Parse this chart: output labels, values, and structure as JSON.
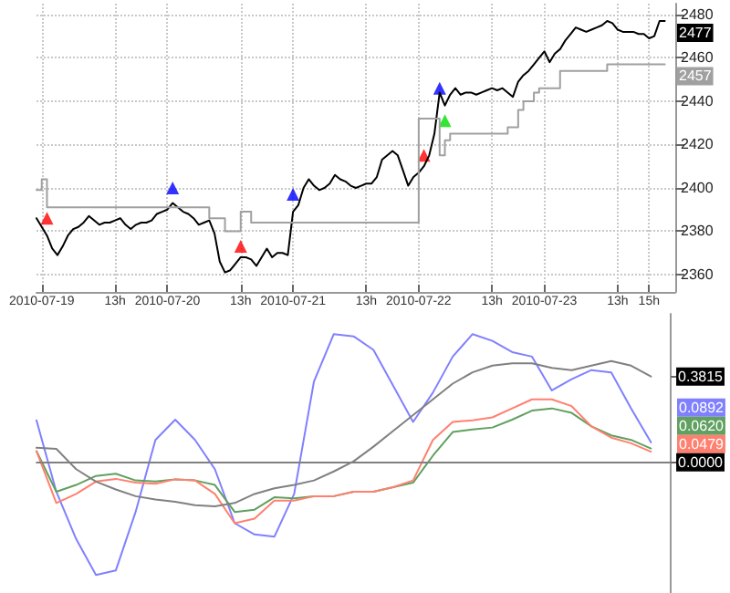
{
  "chart_data": [
    {
      "type": "line",
      "categories": [
        null,
        "2010-07-19",
        null,
        null,
        null,
        null,
        null,
        null,
        null,
        null,
        null,
        null,
        null,
        null,
        null,
        "13h",
        null,
        null,
        null,
        null,
        null,
        null,
        null,
        null,
        null,
        "2010-07-20",
        null,
        null,
        null,
        null,
        null,
        null,
        null,
        null,
        null,
        null,
        null,
        null,
        null,
        "13h",
        null,
        null,
        null,
        null,
        null,
        null,
        null,
        null,
        null,
        "2010-07-21",
        null,
        null,
        null,
        null,
        null,
        null,
        null,
        null,
        null,
        null,
        null,
        null,
        null,
        "13h",
        null,
        null,
        null,
        null,
        null,
        null,
        null,
        null,
        null,
        "2010-07-22",
        null,
        null,
        null,
        null,
        null,
        null,
        null,
        null,
        null,
        null,
        null,
        null,
        null,
        "13h",
        null,
        null,
        null,
        null,
        null,
        null,
        null,
        null,
        null,
        "2010-07-23",
        null,
        null,
        null,
        null,
        null,
        null,
        null,
        null,
        null,
        null,
        null,
        null,
        null,
        "13h",
        null,
        null,
        null,
        null,
        null,
        "15h",
        null,
        null,
        null,
        null,
        null
      ],
      "series": [
        {
          "color": "#000000",
          "values": [
            2386,
            2382,
            2378,
            2372,
            2369,
            2373,
            2378,
            2381,
            2382,
            2384,
            2387,
            2385,
            2383,
            2384,
            2384,
            2385,
            2386,
            2383,
            2381,
            2383,
            2384,
            2384,
            2385,
            2388,
            2389,
            2390,
            2393,
            2391,
            2389,
            2388,
            2386,
            2383,
            2384,
            2385,
            2379,
            2366,
            2361,
            2362,
            2365,
            2368,
            2368,
            2367,
            2364,
            2368,
            2372,
            2368,
            2370,
            2370,
            2369,
            2389,
            2392,
            2400,
            2404,
            2401,
            2399,
            2400,
            2402,
            2406,
            2404,
            2403,
            2401,
            2400,
            2401,
            2402,
            2402,
            2405,
            2413,
            2415,
            2417,
            2415,
            2408,
            2401,
            2405,
            2407,
            2410,
            2415,
            2425,
            2444,
            2438,
            2443,
            2446,
            2443,
            2444,
            2444,
            2443,
            2444,
            2445,
            2446,
            2445,
            2446,
            2444,
            2442,
            2449,
            2452,
            2454,
            2457,
            2460,
            2463,
            2458,
            2462,
            2464,
            2468,
            2471,
            2474,
            2473,
            2472,
            2473,
            2474,
            2475,
            2477,
            2476,
            2473,
            2472,
            2472,
            2472,
            2471,
            2471,
            2469,
            2470,
            2477,
            2477,
            null,
            null
          ]
        },
        {
          "type": "step",
          "color": "#a0a0a0",
          "values": [
            2399,
            2399,
            2404,
            2391,
            2391,
            2391,
            2391,
            2391,
            2391,
            2391,
            2391,
            2391,
            2391,
            2391,
            2391,
            2391,
            2391,
            2391,
            2391,
            2391,
            2391,
            2391,
            2391,
            2391,
            2391,
            2391,
            2391,
            2391,
            2391,
            2391,
            2391,
            2391,
            2391,
            2391,
            2386,
            2386,
            2386,
            2380,
            2380,
            2380,
            2389,
            2389,
            2384,
            2384,
            2384,
            2384,
            2384,
            2384,
            2384,
            2384,
            2384,
            2384,
            2384,
            2384,
            2384,
            2384,
            2384,
            2384,
            2384,
            2384,
            2384,
            2384,
            2384,
            2384,
            2384,
            2384,
            2384,
            2384,
            2384,
            2384,
            2384,
            2384,
            2384,
            2384,
            2432,
            2432,
            2432,
            2432,
            2415,
            2422,
            2425,
            2425,
            2425,
            2425,
            2425,
            2425,
            2425,
            2425,
            2425,
            2425,
            2425,
            2428,
            2428,
            2436,
            2440,
            2440,
            2444,
            2446,
            2446,
            2446,
            2446,
            2454,
            2454,
            2454,
            2454,
            2454,
            2454,
            2454,
            2454,
            2454,
            2457,
            2457,
            2457,
            2457,
            2457,
            2457,
            2457,
            2457,
            2457,
            2457,
            2457,
            null,
            null
          ]
        },
        {
          "type": "scatter",
          "marker": "triangle",
          "color": "#ff0000",
          "values": [
            null,
            null,
            2386,
            null,
            null,
            null,
            null,
            null,
            null,
            null,
            null,
            null,
            null,
            null,
            null,
            null,
            null,
            null,
            null,
            null,
            null,
            null,
            null,
            null,
            null,
            null,
            null,
            null,
            null,
            null,
            null,
            null,
            null,
            null,
            null,
            null,
            null,
            null,
            null,
            2373,
            null,
            null,
            null,
            null,
            null,
            null,
            null,
            null,
            null,
            null,
            null,
            null,
            null,
            null,
            null,
            null,
            null,
            null,
            null,
            null,
            null,
            null,
            null,
            null,
            null,
            null,
            null,
            null,
            null,
            null,
            null,
            null,
            null,
            null,
            2415,
            null,
            null,
            null,
            null,
            null,
            null,
            null,
            null,
            null,
            null,
            null,
            null,
            null,
            null,
            null,
            null,
            null,
            null,
            null,
            null,
            null,
            null,
            null,
            null,
            null,
            null,
            null,
            null,
            null,
            null,
            null,
            null,
            null,
            null,
            null,
            null,
            null,
            null,
            null,
            null,
            null,
            null,
            null,
            null,
            null,
            null,
            null,
            null
          ]
        },
        {
          "type": "scatter",
          "marker": "triangle",
          "color": "#0000ff",
          "values": [
            null,
            null,
            null,
            null,
            null,
            null,
            null,
            null,
            null,
            null,
            null,
            null,
            null,
            null,
            null,
            null,
            null,
            null,
            null,
            null,
            null,
            null,
            null,
            null,
            null,
            null,
            2400,
            null,
            null,
            null,
            null,
            null,
            null,
            null,
            null,
            null,
            null,
            null,
            null,
            null,
            null,
            null,
            null,
            null,
            null,
            null,
            null,
            null,
            null,
            2397,
            null,
            null,
            null,
            null,
            null,
            null,
            null,
            null,
            null,
            null,
            null,
            null,
            null,
            null,
            null,
            null,
            null,
            null,
            null,
            null,
            null,
            null,
            null,
            null,
            null,
            null,
            null,
            2446,
            null,
            null,
            null,
            null,
            null,
            null,
            null,
            null,
            null,
            null,
            null,
            null,
            null,
            null,
            null,
            null,
            null,
            null,
            null,
            null,
            null,
            null,
            null,
            null,
            null,
            null,
            null,
            null,
            null,
            null,
            null,
            null,
            null,
            null,
            null,
            null,
            null,
            null,
            null,
            null,
            null,
            null,
            null,
            null,
            null
          ]
        },
        {
          "type": "scatter",
          "marker": "triangle",
          "color": "#00e000",
          "values": [
            null,
            null,
            null,
            null,
            null,
            null,
            null,
            null,
            null,
            null,
            null,
            null,
            null,
            null,
            null,
            null,
            null,
            null,
            null,
            null,
            null,
            null,
            null,
            null,
            null,
            null,
            null,
            null,
            null,
            null,
            null,
            null,
            null,
            null,
            null,
            null,
            null,
            null,
            null,
            null,
            null,
            null,
            null,
            null,
            null,
            null,
            null,
            null,
            null,
            null,
            null,
            null,
            null,
            null,
            null,
            null,
            null,
            null,
            null,
            null,
            null,
            null,
            null,
            null,
            null,
            null,
            null,
            null,
            null,
            null,
            null,
            null,
            null,
            null,
            null,
            null,
            null,
            null,
            2431,
            null,
            null,
            null,
            null,
            null,
            null,
            null,
            null,
            null,
            null,
            null,
            null,
            null,
            null,
            null,
            null,
            null,
            null,
            null,
            null,
            null,
            null,
            null,
            null,
            null,
            null,
            null,
            null,
            null,
            null,
            null,
            null,
            null,
            null,
            null,
            null,
            null,
            null,
            null,
            null,
            null,
            null,
            null,
            null
          ]
        }
      ],
      "ylim": [
        2352,
        2485
      ],
      "yticks": [
        2360,
        2380,
        2400,
        2420,
        2440,
        2460,
        2480
      ],
      "grid": true,
      "marker": "none",
      "line_style": "solid",
      "annotations": [
        "2477",
        "2457"
      ]
    },
    {
      "type": "line",
      "categories": [
        null,
        null,
        null,
        null,
        null,
        null,
        null,
        null,
        null,
        null,
        null,
        null,
        null,
        null,
        null,
        null,
        null,
        null,
        null,
        null,
        null,
        null,
        null,
        null,
        null,
        null,
        null,
        null,
        null,
        null,
        null,
        null,
        null
      ],
      "series": [
        {
          "color": "#8080ff",
          "values": [
            0.187,
            -0.13,
            -0.34,
            -0.5,
            -0.48,
            -0.22,
            0.1,
            0.19,
            0.1,
            -0.03,
            -0.27,
            -0.32,
            -0.33,
            -0.14,
            0.36,
            0.57,
            0.56,
            0.5,
            0.34,
            0.18,
            0.31,
            0.47,
            0.57,
            0.54,
            0.49,
            0.47,
            0.32,
            0.37,
            0.41,
            0.4,
            0.24,
            0.0892,
            null
          ]
        },
        {
          "color": "#60a060",
          "values": [
            0.05,
            -0.13,
            -0.1,
            -0.06,
            -0.05,
            -0.08,
            -0.085,
            -0.075,
            -0.08,
            -0.1,
            -0.22,
            -0.21,
            -0.155,
            -0.16,
            -0.15,
            -0.15,
            -0.13,
            -0.13,
            -0.11,
            -0.09,
            0.03,
            0.135,
            0.146,
            0.155,
            0.19,
            0.23,
            0.24,
            0.22,
            0.16,
            0.12,
            0.1,
            0.062,
            null
          ]
        },
        {
          "color": "#ff8070",
          "values": [
            0.05,
            -0.18,
            -0.14,
            -0.085,
            -0.073,
            -0.09,
            -0.095,
            -0.075,
            -0.08,
            -0.14,
            -0.27,
            -0.25,
            -0.17,
            -0.17,
            -0.15,
            -0.15,
            -0.13,
            -0.13,
            -0.11,
            -0.08,
            0.1,
            0.18,
            0.187,
            0.2,
            0.24,
            0.28,
            0.28,
            0.25,
            0.16,
            0.11,
            0.085,
            0.0479,
            null
          ]
        },
        {
          "color": "#808080",
          "values": [
            0.065,
            0.06,
            -0.03,
            -0.085,
            -0.12,
            -0.15,
            -0.165,
            -0.175,
            -0.19,
            -0.195,
            -0.18,
            -0.14,
            -0.115,
            -0.1,
            -0.08,
            -0.04,
            0.005,
            0.07,
            0.14,
            0.21,
            0.28,
            0.35,
            0.4,
            0.43,
            0.44,
            0.44,
            0.42,
            0.41,
            0.43,
            0.45,
            0.43,
            0.3815,
            null
          ]
        }
      ],
      "ylim": [
        -0.58,
        0.66
      ],
      "yticks": [
        {
          "value": 0,
          "label": "0.0000"
        },
        {
          "value": 0.3815,
          "label": "0.3815"
        }
      ],
      "tick_labels": "y",
      "marker": "none",
      "line_style": "solid",
      "ref_lines": [
        {
          "axis": "y",
          "value": 0,
          "color": "#808080"
        }
      ],
      "annotations": [
        "0.0892",
        "0.0620",
        "0.0479"
      ]
    }
  ]
}
